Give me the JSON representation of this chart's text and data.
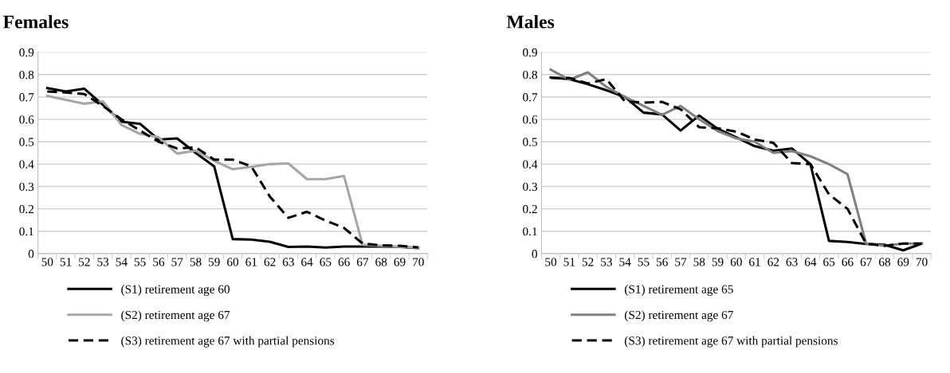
{
  "chart_data": [
    {
      "type": "line",
      "title": "Females",
      "categories": [
        "50",
        "51",
        "52",
        "53",
        "54",
        "55",
        "56",
        "57",
        "58",
        "59",
        "60",
        "61",
        "62",
        "63",
        "64",
        "65",
        "66",
        "67",
        "68",
        "69",
        "70"
      ],
      "ylim": [
        0,
        0.9
      ],
      "yticks": [
        0,
        0.1,
        0.2,
        0.3,
        0.4,
        0.5,
        0.6,
        0.7,
        0.8,
        0.9
      ],
      "grid": "y",
      "legend": "bottom",
      "marker": "none",
      "series": [
        {
          "name": "(S1) retirement age 60",
          "color": "#000000",
          "line_style": "solid",
          "values": [
            0.74,
            0.725,
            0.737,
            0.665,
            0.59,
            0.58,
            0.51,
            0.515,
            0.45,
            0.39,
            0.065,
            0.063,
            0.053,
            0.03,
            0.032,
            0.027,
            0.032,
            0.032,
            0.032,
            0.03,
            0.025
          ]
        },
        {
          "name": "(S2) retirement age 67",
          "color": "#a6a6a6",
          "line_style": "solid",
          "values": [
            0.705,
            0.687,
            0.67,
            0.68,
            0.575,
            0.535,
            0.52,
            0.447,
            0.46,
            0.415,
            0.377,
            0.388,
            0.4,
            0.403,
            0.333,
            0.333,
            0.347,
            0.04,
            0.035,
            0.03,
            0.027
          ]
        },
        {
          "name": "(S3) retirement age 67 with partial pensions",
          "color": "#000000",
          "line_style": "dashed",
          "values": [
            0.725,
            0.72,
            0.713,
            0.66,
            0.6,
            0.55,
            0.5,
            0.47,
            0.475,
            0.42,
            0.42,
            0.39,
            0.255,
            0.16,
            0.187,
            0.148,
            0.115,
            0.045,
            0.037,
            0.035,
            0.028
          ]
        }
      ]
    },
    {
      "type": "line",
      "title": "Males",
      "categories": [
        "50",
        "51",
        "52",
        "53",
        "54",
        "55",
        "56",
        "57",
        "58",
        "59",
        "60",
        "61",
        "62",
        "63",
        "64",
        "65",
        "66",
        "67",
        "68",
        "69",
        "70"
      ],
      "ylim": [
        0,
        0.9
      ],
      "yticks": [
        0,
        0.1,
        0.2,
        0.3,
        0.4,
        0.5,
        0.6,
        0.7,
        0.8,
        0.9
      ],
      "grid": "y",
      "legend": "bottom",
      "marker": "none",
      "series": [
        {
          "name": "(S1) retirement age 65",
          "color": "#000000",
          "line_style": "solid",
          "values": [
            0.787,
            0.78,
            0.757,
            0.73,
            0.7,
            0.63,
            0.622,
            0.55,
            0.617,
            0.558,
            0.52,
            0.48,
            0.46,
            0.47,
            0.4,
            0.057,
            0.052,
            0.043,
            0.04,
            0.015,
            0.045
          ]
        },
        {
          "name": "(S2) retirement age 67",
          "color": "#808080",
          "line_style": "solid",
          "values": [
            0.822,
            0.777,
            0.81,
            0.745,
            0.7,
            0.66,
            0.62,
            0.66,
            0.6,
            0.548,
            0.515,
            0.5,
            0.45,
            0.458,
            0.435,
            0.4,
            0.355,
            0.045,
            0.035,
            0.045,
            0.045
          ]
        },
        {
          "name": "(S3) retirement age 67 with partial pensions",
          "color": "#000000",
          "line_style": "dashed",
          "values": [
            0.785,
            0.785,
            0.76,
            0.78,
            0.68,
            0.675,
            0.678,
            0.645,
            0.565,
            0.56,
            0.545,
            0.51,
            0.495,
            0.405,
            0.4,
            0.265,
            0.2,
            0.045,
            0.035,
            0.045,
            0.045
          ]
        }
      ]
    }
  ]
}
